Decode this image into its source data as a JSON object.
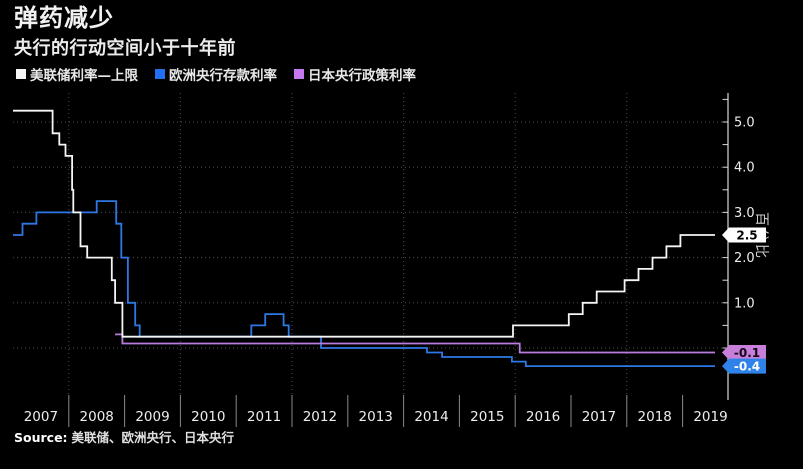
{
  "header": {
    "title": "弹药减少",
    "subtitle": "央行的行动空间小于十年前"
  },
  "legend": {
    "items": [
      {
        "label": "美联储利率—上限",
        "color": "#f5f5f5"
      },
      {
        "label": "欧洲央行存款利率",
        "color": "#2170f0"
      },
      {
        "label": "日本央行政策利率",
        "color": "#c678f0"
      }
    ]
  },
  "chart_data": {
    "type": "line",
    "step": true,
    "title": "弹药减少",
    "subtitle": "央行的行动空间小于十年前",
    "ylabel": "百分比",
    "x_range": [
      2007.0,
      2019.85
    ],
    "y_range": [
      -0.75,
      5.65
    ],
    "grid": true,
    "legend_position": "top",
    "x_tick_labels": [
      "2007",
      "2008",
      "2009",
      "2010",
      "2011",
      "2012",
      "2013",
      "2014",
      "2015",
      "2016",
      "2017",
      "2018",
      "2019"
    ],
    "grid_x_years": [
      2008,
      2010,
      2012,
      2014,
      2016,
      2018
    ],
    "grid_y_values": [
      0,
      1,
      2,
      3,
      4,
      5
    ],
    "y_ticks": [
      {
        "value": 1,
        "label": "1.0"
      },
      {
        "value": 2,
        "label": "2.0"
      },
      {
        "value": 3,
        "label": "3.0"
      },
      {
        "value": 4,
        "label": "4.0"
      },
      {
        "value": 5,
        "label": "5.0"
      }
    ],
    "y_minor_tick_step": 0.5,
    "series": [
      {
        "id": "fed-upper-rate-line",
        "name": "美联储利率—上限",
        "color": "#f5f5f5",
        "points": [
          [
            2007.0,
            5.25
          ],
          [
            2007.71,
            5.25
          ],
          [
            2007.71,
            4.75
          ],
          [
            2007.83,
            4.75
          ],
          [
            2007.83,
            4.5
          ],
          [
            2007.94,
            4.5
          ],
          [
            2007.94,
            4.25
          ],
          [
            2008.06,
            4.25
          ],
          [
            2008.06,
            3.5
          ],
          [
            2008.08,
            3.5
          ],
          [
            2008.08,
            3.0
          ],
          [
            2008.21,
            3.0
          ],
          [
            2008.21,
            2.25
          ],
          [
            2008.33,
            2.25
          ],
          [
            2008.33,
            2.0
          ],
          [
            2008.77,
            2.0
          ],
          [
            2008.77,
            1.5
          ],
          [
            2008.83,
            1.5
          ],
          [
            2008.83,
            1.0
          ],
          [
            2008.96,
            1.0
          ],
          [
            2008.96,
            0.25
          ],
          [
            2015.96,
            0.25
          ],
          [
            2015.96,
            0.5
          ],
          [
            2016.96,
            0.5
          ],
          [
            2016.96,
            0.75
          ],
          [
            2017.21,
            0.75
          ],
          [
            2017.21,
            1.0
          ],
          [
            2017.46,
            1.0
          ],
          [
            2017.46,
            1.25
          ],
          [
            2017.96,
            1.25
          ],
          [
            2017.96,
            1.5
          ],
          [
            2018.21,
            1.5
          ],
          [
            2018.21,
            1.75
          ],
          [
            2018.46,
            1.75
          ],
          [
            2018.46,
            2.0
          ],
          [
            2018.71,
            2.0
          ],
          [
            2018.71,
            2.25
          ],
          [
            2018.96,
            2.25
          ],
          [
            2018.96,
            2.5
          ],
          [
            2019.58,
            2.5
          ]
        ]
      },
      {
        "id": "ecb-deposit-rate-line",
        "name": "欧洲央行存款利率",
        "color": "#2e78e6",
        "points": [
          [
            2007.0,
            2.5
          ],
          [
            2007.17,
            2.5
          ],
          [
            2007.17,
            2.75
          ],
          [
            2007.42,
            2.75
          ],
          [
            2007.42,
            3.0
          ],
          [
            2008.5,
            3.0
          ],
          [
            2008.5,
            3.25
          ],
          [
            2008.85,
            3.25
          ],
          [
            2008.85,
            2.75
          ],
          [
            2008.94,
            2.75
          ],
          [
            2008.94,
            2.0
          ],
          [
            2009.06,
            2.0
          ],
          [
            2009.06,
            1.0
          ],
          [
            2009.19,
            1.0
          ],
          [
            2009.19,
            0.5
          ],
          [
            2009.27,
            0.5
          ],
          [
            2009.27,
            0.25
          ],
          [
            2011.27,
            0.25
          ],
          [
            2011.27,
            0.5
          ],
          [
            2011.52,
            0.5
          ],
          [
            2011.52,
            0.75
          ],
          [
            2011.85,
            0.75
          ],
          [
            2011.85,
            0.5
          ],
          [
            2011.94,
            0.5
          ],
          [
            2011.94,
            0.25
          ],
          [
            2012.52,
            0.25
          ],
          [
            2012.52,
            0.0
          ],
          [
            2014.42,
            0.0
          ],
          [
            2014.42,
            -0.1
          ],
          [
            2014.69,
            -0.1
          ],
          [
            2014.69,
            -0.2
          ],
          [
            2015.94,
            -0.2
          ],
          [
            2015.94,
            -0.3
          ],
          [
            2016.19,
            -0.3
          ],
          [
            2016.19,
            -0.4
          ],
          [
            2019.58,
            -0.4
          ]
        ]
      },
      {
        "id": "boj-policy-rate-line",
        "name": "日本央行政策利率",
        "color": "#b97cdf",
        "points": [
          [
            2008.83,
            0.3
          ],
          [
            2008.96,
            0.3
          ],
          [
            2008.96,
            0.1
          ],
          [
            2016.08,
            0.1
          ],
          [
            2016.08,
            -0.1
          ],
          [
            2019.58,
            -0.1
          ]
        ]
      }
    ],
    "end_labels": [
      {
        "text": "2.5",
        "value": 2.5,
        "bg": "#ffffff",
        "fg": "#000000"
      },
      {
        "text": "-0.1",
        "value": -0.1,
        "bg": "#c87fd9",
        "fg": "#14001a"
      },
      {
        "text": "-0.4",
        "value": -0.4,
        "bg": "#2e82e8",
        "fg": "#ffffff"
      }
    ]
  },
  "source": {
    "label": "Source:",
    "text": "美联储、欧洲央行、日本央行"
  }
}
